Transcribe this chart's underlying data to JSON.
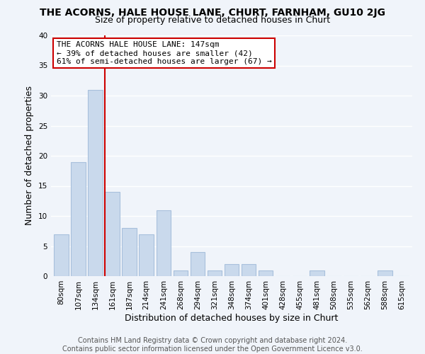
{
  "title": "THE ACORNS, HALE HOUSE LANE, CHURT, FARNHAM, GU10 2JG",
  "subtitle": "Size of property relative to detached houses in Churt",
  "xlabel": "Distribution of detached houses by size in Churt",
  "ylabel": "Number of detached properties",
  "bar_labels": [
    "80sqm",
    "107sqm",
    "134sqm",
    "161sqm",
    "187sqm",
    "214sqm",
    "241sqm",
    "268sqm",
    "294sqm",
    "321sqm",
    "348sqm",
    "374sqm",
    "401sqm",
    "428sqm",
    "455sqm",
    "481sqm",
    "508sqm",
    "535sqm",
    "562sqm",
    "588sqm",
    "615sqm"
  ],
  "bar_values": [
    7,
    19,
    31,
    14,
    8,
    7,
    11,
    1,
    4,
    1,
    2,
    2,
    1,
    0,
    0,
    1,
    0,
    0,
    0,
    1,
    0
  ],
  "bar_color": "#c9d9ec",
  "bar_edgecolor": "#a8c0dc",
  "ylim": [
    0,
    40
  ],
  "yticks": [
    0,
    5,
    10,
    15,
    20,
    25,
    30,
    35,
    40
  ],
  "vline_color": "#cc0000",
  "annotation_title": "THE ACORNS HALE HOUSE LANE: 147sqm",
  "annotation_line1": "← 39% of detached houses are smaller (42)",
  "annotation_line2": "61% of semi-detached houses are larger (67) →",
  "annotation_box_facecolor": "#ffffff",
  "annotation_box_edgecolor": "#cc0000",
  "footer_line1": "Contains HM Land Registry data © Crown copyright and database right 2024.",
  "footer_line2": "Contains public sector information licensed under the Open Government Licence v3.0.",
  "background_color": "#f0f4fa",
  "grid_color": "#ffffff",
  "title_fontsize": 10,
  "subtitle_fontsize": 9,
  "axis_label_fontsize": 9,
  "tick_fontsize": 7.5,
  "annot_fontsize": 8,
  "footer_fontsize": 7
}
